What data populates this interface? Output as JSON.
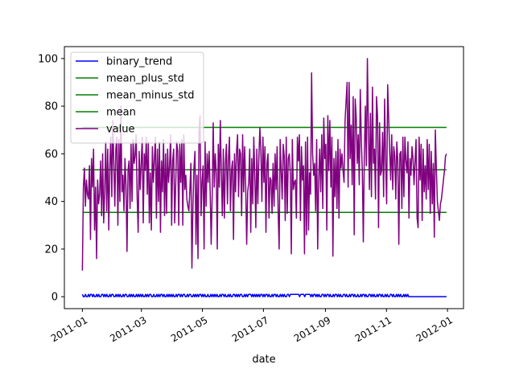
{
  "chart_data": {
    "type": "line",
    "title": "",
    "xlabel": "date",
    "ylabel": "",
    "xlim": [
      "2010-12-14",
      "2012-01-17"
    ],
    "ylim": [
      -5,
      105
    ],
    "x_ticks": [
      {
        "date": "2011-01-01",
        "label": "2011-01"
      },
      {
        "date": "2011-03-01",
        "label": "2011-03"
      },
      {
        "date": "2011-05-01",
        "label": "2011-05"
      },
      {
        "date": "2011-07-01",
        "label": "2011-07"
      },
      {
        "date": "2011-09-01",
        "label": "2011-09"
      },
      {
        "date": "2011-11-01",
        "label": "2011-11"
      },
      {
        "date": "2012-01-01",
        "label": "2012-01"
      }
    ],
    "y_ticks": [
      0,
      20,
      40,
      60,
      80,
      100
    ],
    "grid": false,
    "legend_position": "upper left",
    "x_start": "2011-01-01",
    "x_end": "2011-12-31",
    "series": [
      {
        "name": "binary_trend",
        "color": "#0000ff",
        "kind": "line",
        "values": [
          1,
          0,
          0,
          1,
          0,
          0,
          1,
          0,
          1,
          1,
          0,
          1,
          0,
          0,
          1,
          0,
          1,
          0,
          0,
          1,
          1,
          0,
          1,
          0,
          1,
          0,
          0,
          1,
          0,
          1,
          1,
          0,
          0,
          1,
          0,
          1,
          0,
          1,
          0,
          0,
          1,
          0,
          1,
          1,
          0,
          0,
          1,
          0,
          1,
          0,
          1,
          0,
          0,
          1,
          0,
          1,
          0,
          1,
          0,
          1,
          0,
          0,
          1,
          0,
          1,
          0,
          1,
          1,
          0,
          0,
          1,
          0,
          0,
          1,
          0,
          1,
          0,
          1,
          1,
          0,
          1,
          0,
          0,
          1,
          0,
          1,
          0,
          1,
          0,
          1,
          0,
          0,
          1,
          0,
          1,
          1,
          0,
          1,
          0,
          1,
          1,
          0,
          0,
          1,
          0,
          1,
          1,
          0,
          0,
          1,
          0,
          1,
          0,
          1,
          0,
          1,
          1,
          0,
          1,
          0,
          1,
          0,
          0,
          1,
          0,
          0,
          1,
          0,
          1,
          0,
          1,
          0,
          1,
          0,
          0,
          1,
          0,
          1,
          1,
          0,
          1,
          0,
          0,
          1,
          0,
          1,
          0,
          0,
          1,
          1,
          0,
          1,
          0,
          1,
          0,
          1,
          1,
          0,
          0,
          1,
          0,
          1,
          0,
          1,
          1,
          1,
          0,
          1,
          0,
          1,
          0,
          1,
          0,
          1,
          0,
          1,
          1,
          0,
          1,
          0,
          1,
          1,
          0,
          1,
          0,
          0,
          1,
          0,
          1,
          1,
          0,
          1,
          0,
          0,
          1,
          0,
          1,
          0,
          1,
          0,
          0,
          1,
          1,
          0,
          1,
          1,
          1,
          1,
          1,
          1,
          1,
          1,
          1,
          0,
          1,
          1,
          1,
          1,
          0,
          1,
          1,
          1,
          1,
          1,
          0,
          1,
          0,
          1,
          1,
          0,
          1,
          0,
          1,
          0,
          0,
          1,
          1,
          0,
          1,
          0,
          1,
          1,
          0,
          1,
          0,
          0,
          1,
          0,
          1,
          1,
          0,
          1,
          0,
          1,
          0,
          0,
          1,
          1,
          0,
          1,
          0,
          0,
          1,
          0,
          1,
          1,
          0,
          1,
          0,
          0,
          1,
          0,
          0,
          1,
          0,
          1,
          1,
          0,
          1,
          0,
          0,
          1,
          1,
          0,
          1,
          0,
          1,
          0,
          0,
          1,
          0,
          1,
          1,
          0,
          1,
          0,
          0,
          1,
          0,
          1,
          0,
          0,
          1,
          1,
          0,
          1,
          0,
          0,
          1,
          0,
          1,
          0,
          1,
          0,
          0,
          1,
          0,
          1,
          0,
          1,
          0,
          0,
          0,
          0,
          0,
          0,
          0,
          0,
          0,
          0,
          0,
          0,
          0,
          0,
          0,
          0,
          0,
          0,
          0,
          0,
          0,
          0,
          0,
          0,
          0,
          0,
          0,
          0,
          0,
          0,
          0,
          0,
          0,
          0,
          0,
          0,
          0,
          0
        ]
      },
      {
        "name": "mean_plus_std",
        "color": "#008000",
        "kind": "constant",
        "value": 71.1
      },
      {
        "name": "mean_minus_std",
        "color": "#008000",
        "kind": "constant",
        "value": 35.4
      },
      {
        "name": "mean",
        "color": "#008000",
        "kind": "constant",
        "value": 53.3
      },
      {
        "name": "value",
        "color": "#800080",
        "kind": "line",
        "values": [
          11,
          46,
          54,
          38,
          49,
          43,
          41,
          55,
          24,
          58,
          46,
          62,
          28,
          46,
          16,
          49,
          39,
          43,
          57,
          34,
          60,
          31,
          44,
          65,
          36,
          62,
          28,
          54,
          67,
          42,
          74,
          56,
          38,
          62,
          67,
          30,
          66,
          40,
          80,
          44,
          51,
          36,
          58,
          47,
          19,
          53,
          57,
          37,
          64,
          40,
          66,
          56,
          59,
          68,
          42,
          27,
          61,
          45,
          56,
          67,
          31,
          60,
          53,
          67,
          43,
          65,
          31,
          52,
          28,
          63,
          48,
          58,
          67,
          33,
          62,
          40,
          65,
          27,
          57,
          44,
          66,
          34,
          60,
          35,
          62,
          48,
          55,
          68,
          30,
          57,
          62,
          31,
          47,
          65,
          61,
          30,
          64,
          48,
          66,
          30,
          68,
          45,
          51,
          41,
          38,
          36,
          45,
          56,
          12,
          38,
          54,
          61,
          22,
          51,
          16,
          69,
          76,
          34,
          48,
          55,
          20,
          65,
          38,
          60,
          48,
          61,
          44,
          22,
          43,
          73,
          46,
          60,
          52,
          20,
          64,
          46,
          74,
          52,
          34,
          62,
          33,
          56,
          64,
          39,
          58,
          67,
          36,
          53,
          57,
          24,
          60,
          44,
          61,
          68,
          42,
          62,
          60,
          34,
          68,
          44,
          63,
          47,
          22,
          44,
          48,
          62,
          27,
          58,
          39,
          67,
          51,
          29,
          62,
          39,
          58,
          71,
          61,
          40,
          67,
          48,
          63,
          27,
          56,
          60,
          33,
          50,
          49,
          35,
          56,
          38,
          60,
          45,
          63,
          36,
          20,
          66,
          53,
          41,
          64,
          59,
          32,
          67,
          35,
          58,
          60,
          52,
          18,
          66,
          45,
          48,
          49,
          33,
          67,
          57,
          68,
          32,
          63,
          49,
          55,
          18,
          65,
          26,
          67,
          28,
          52,
          43,
          94,
          60,
          51,
          56,
          36,
          66,
          20,
          49,
          62,
          44,
          68,
          37,
          75,
          58,
          64,
          28,
          76,
          53,
          74,
          46,
          67,
          17,
          58,
          42,
          61,
          37,
          66,
          33,
          62,
          54,
          60,
          53,
          48,
          74,
          82,
          90,
          46,
          90,
          58,
          72,
          47,
          84,
          26,
          83,
          75,
          56,
          68,
          47,
          87,
          66,
          53,
          23,
          60,
          80,
          55,
          100,
          71,
          45,
          77,
          42,
          88,
          56,
          62,
          41,
          84,
          76,
          29,
          73,
          51,
          53,
          69,
          42,
          83,
          57,
          39,
          89,
          75,
          61,
          49,
          68,
          45,
          63,
          59,
          41,
          65,
          57,
          22,
          60,
          61,
          37,
          67,
          42,
          67,
          57,
          52,
          65,
          33,
          58,
          51,
          63,
          58,
          47,
          57,
          66,
          33,
          29,
          67,
          49,
          64,
          32,
          62,
          44,
          55,
          41,
          66,
          45,
          64,
          35,
          61,
          39,
          56,
          25,
          70,
          54,
          40,
          36,
          32,
          39,
          41,
          45,
          49,
          53,
          59,
          60
        ]
      }
    ]
  }
}
